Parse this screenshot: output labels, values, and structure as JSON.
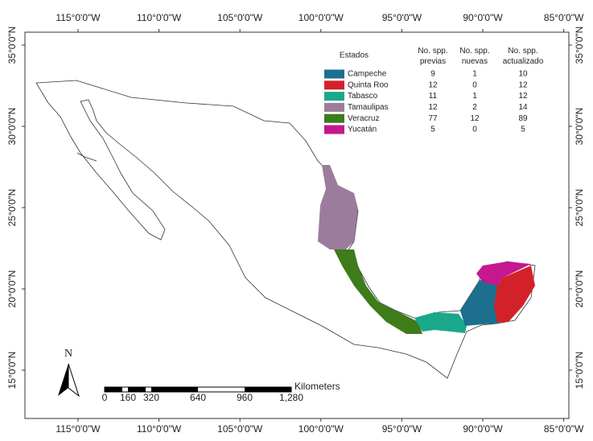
{
  "map": {
    "lon_ticks": [
      "115°0'0\"W",
      "110°0'0\"W",
      "105°0'0\"W",
      "100°0'0\"W",
      "95°0'0\"W",
      "90°0'0\"W",
      "85°0'0\"W"
    ],
    "lat_ticks": [
      "35°0'0\"N",
      "30°0'0\"N",
      "25°0'0\"N",
      "20°0'0\"N",
      "15°0'0\"N"
    ],
    "legend": {
      "headers": [
        "Estados",
        "No. spp. previas",
        "No. spp. nuevas",
        "No. spp. actualizado"
      ],
      "rows": [
        {
          "name": "Campeche",
          "color": "#1c6f8f",
          "previas": 9,
          "nuevas": 1,
          "actualizado": 10
        },
        {
          "name": "Quinta Roo",
          "color": "#d3212a",
          "previas": 12,
          "nuevas": 0,
          "actualizado": 12
        },
        {
          "name": "Tabasco",
          "color": "#19a88a",
          "previas": 11,
          "nuevas": 1,
          "actualizado": 12
        },
        {
          "name": "Tamaulipas",
          "color": "#9b7c9c",
          "previas": 12,
          "nuevas": 2,
          "actualizado": 14
        },
        {
          "name": "Veracruz",
          "color": "#3e7b1b",
          "previas": 77,
          "nuevas": 12,
          "actualizado": 89
        },
        {
          "name": "Yucatán",
          "color": "#c5178e",
          "previas": 5,
          "nuevas": 0,
          "actualizado": 5
        }
      ]
    },
    "north": "N",
    "scale": {
      "unit": "Kilometers",
      "labels": [
        "0",
        "160",
        "320",
        "640",
        "960",
        "1,280"
      ]
    }
  }
}
